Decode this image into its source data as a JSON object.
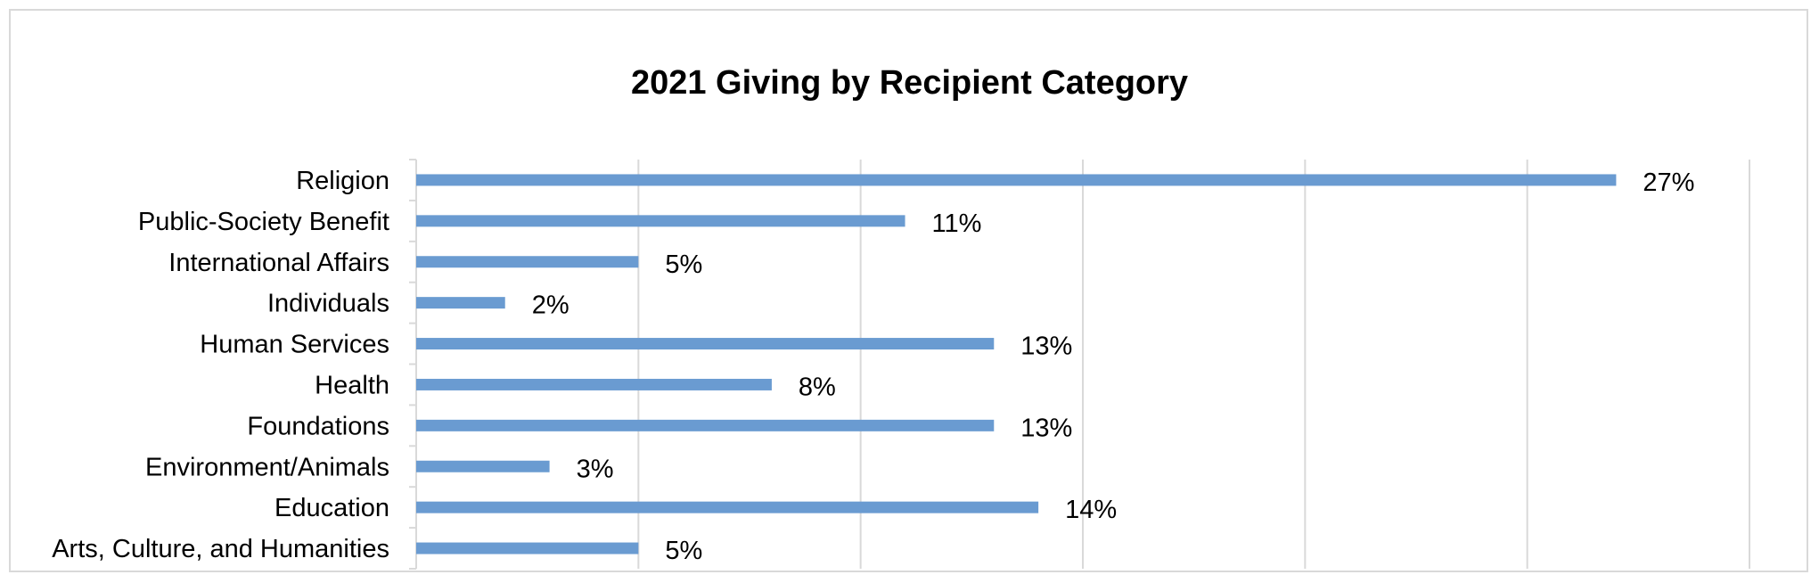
{
  "chart_data": {
    "type": "bar",
    "orientation": "horizontal",
    "title": "2021 Giving by Recipient Category",
    "categories": [
      "Religion",
      "Public-Society Benefit",
      "International Affairs",
      "Individuals",
      "Human Services",
      "Health",
      "Foundations",
      "Environment/Animals",
      "Education",
      "Arts, Culture, and Humanities"
    ],
    "values": [
      27,
      11,
      5,
      2,
      13,
      8,
      13,
      3,
      14,
      5
    ],
    "value_labels": [
      "27%",
      "11%",
      "5%",
      "2%",
      "13%",
      "8%",
      "13%",
      "3%",
      "14%",
      "5%"
    ],
    "xlim": [
      0,
      30
    ],
    "x_gridline_step": 5,
    "grid": true,
    "legend": "none",
    "colors": {
      "bar": "#6a9bd1",
      "grid": "#d9d9d9",
      "border": "#d9d9d9"
    }
  }
}
